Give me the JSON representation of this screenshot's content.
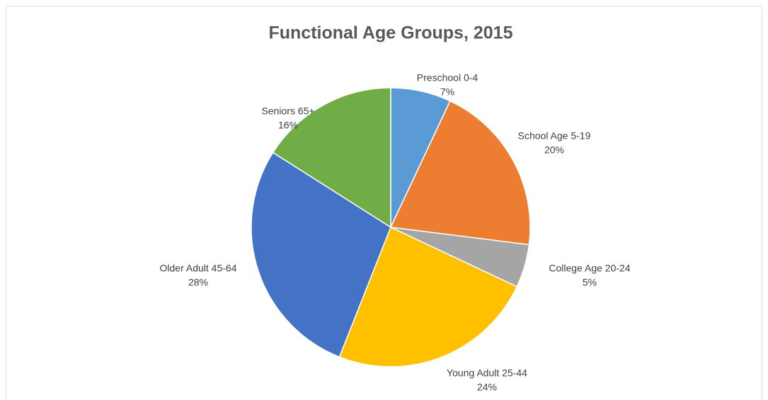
{
  "chart_data": {
    "type": "pie",
    "title": "Functional Age Groups, 2015",
    "categories": [
      "Preschool 0-4",
      "School Age 5-19",
      "College Age 20-24",
      "Young Adult 25-44",
      "Older Adult 45-64",
      "Seniors 65+"
    ],
    "values": [
      7,
      20,
      5,
      24,
      28,
      16
    ],
    "value_labels": [
      "7%",
      "20%",
      "5%",
      "24%",
      "28%",
      "16%"
    ],
    "colors": [
      "#5b9bd5",
      "#ed7d31",
      "#a5a5a5",
      "#ffc000",
      "#4472c4",
      "#70ad47"
    ]
  }
}
